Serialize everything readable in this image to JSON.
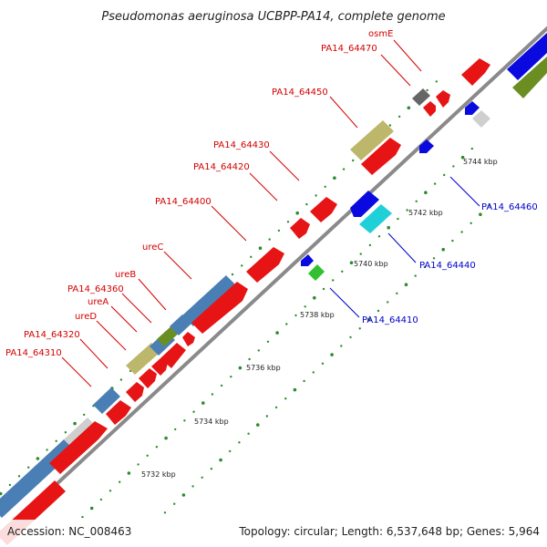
{
  "title": "Pseudomonas aeruginosa UCBPP-PA14, complete genome",
  "footer": {
    "accession": "Accession: NC_008463",
    "summary": "Topology: circular; Length: 6,537,648 bp; Genes: 5,964"
  },
  "colors": {
    "backbone": "#7a7a7a",
    "red_cds": "#e61414",
    "steel_blue": "#4a7fb5",
    "khaki": "#bdb76b",
    "light_gray": "#cfcfcf",
    "olive": "#6b8e23",
    "blue": "#0a0ae0",
    "cyan": "#20d0d8",
    "green": "#30c030",
    "dark_gray": "#666666",
    "tick_green": "#2e8b2e",
    "red_label": "#d40000",
    "blue_label": "#0000cc"
  },
  "features_top": [
    {
      "name": "PA14_64310",
      "color": "red_label"
    },
    {
      "name": "PA14_64320",
      "color": "red_label"
    },
    {
      "name": "ureD",
      "color": "red_label"
    },
    {
      "name": "ureA",
      "color": "red_label"
    },
    {
      "name": "PA14_64360",
      "color": "red_label"
    },
    {
      "name": "ureB",
      "color": "red_label"
    },
    {
      "name": "ureC",
      "color": "red_label"
    },
    {
      "name": "PA14_64400",
      "color": "red_label"
    },
    {
      "name": "PA14_64420",
      "color": "red_label"
    },
    {
      "name": "PA14_64430",
      "color": "red_label"
    },
    {
      "name": "PA14_64450",
      "color": "red_label"
    },
    {
      "name": "PA14_64470",
      "color": "red_label"
    },
    {
      "name": "osmE",
      "color": "red_label"
    }
  ],
  "features_bottom": [
    {
      "name": "PA14_64410",
      "color": "blue_label"
    },
    {
      "name": "PA14_64440",
      "color": "blue_label"
    },
    {
      "name": "PA14_64460",
      "color": "blue_label"
    }
  ],
  "scale": [
    "5732 kbp",
    "5734 kbp",
    "5736 kbp",
    "5738 kbp",
    "5740 kbp",
    "5742 kbp",
    "5744 kbp"
  ]
}
